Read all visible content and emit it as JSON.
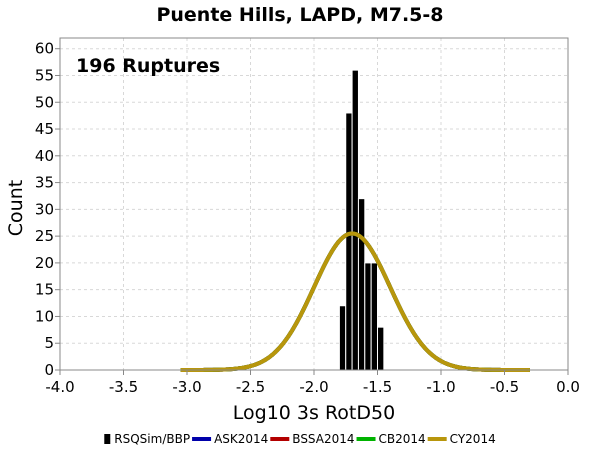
{
  "chart_data": {
    "type": "bar",
    "title": "Puente Hills, LAPD, M7.5-8",
    "xlabel": "Log10 3s RotD50",
    "ylabel": "Count",
    "xlim": [
      -4.0,
      0.0
    ],
    "ylim": [
      0,
      62
    ],
    "x_ticks": [
      "-4.0",
      "-3.5",
      "-3.0",
      "-2.5",
      "-2.0",
      "-1.5",
      "-1.0",
      "-0.5",
      "0.0"
    ],
    "x_tick_values": [
      -4.0,
      -3.5,
      -3.0,
      -2.5,
      -2.0,
      -1.5,
      -1.0,
      -0.5,
      0.0
    ],
    "y_ticks": [
      "0",
      "5",
      "10",
      "15",
      "20",
      "25",
      "30",
      "35",
      "40",
      "45",
      "50",
      "55",
      "60"
    ],
    "y_tick_values": [
      0,
      5,
      10,
      15,
      20,
      25,
      30,
      35,
      40,
      45,
      50,
      55,
      60
    ],
    "grid": true,
    "annotation": "196 Ruptures",
    "histogram": {
      "name": "RSQSim/BBP",
      "color": "#000000",
      "bin_width": 0.05,
      "bins": [
        {
          "x": -1.775,
          "count": 12
        },
        {
          "x": -1.725,
          "count": 48
        },
        {
          "x": -1.675,
          "count": 56
        },
        {
          "x": -1.625,
          "count": 32
        },
        {
          "x": -1.575,
          "count": 20
        },
        {
          "x": -1.525,
          "count": 20
        },
        {
          "x": -1.475,
          "count": 8
        }
      ]
    },
    "series": [
      {
        "name": "ASK2014",
        "color": "#0000aa",
        "mean": -1.7,
        "sigma": 0.3,
        "peak": 25.5
      },
      {
        "name": "BSSA2014",
        "color": "#b30000",
        "mean": -1.7,
        "sigma": 0.3,
        "peak": 25.5
      },
      {
        "name": "CB2014",
        "color": "#00b300",
        "mean": -1.7,
        "sigma": 0.3,
        "peak": 25.5
      },
      {
        "name": "CY2014",
        "color": "#b8960c",
        "mean": -1.7,
        "sigma": 0.3,
        "peak": 25.5
      }
    ],
    "curve_range": [
      -3.05,
      -0.3
    ],
    "legend": [
      "RSQSim/BBP",
      "ASK2014",
      "BSSA2014",
      "CB2014",
      "CY2014"
    ],
    "legend_position": "bottom"
  }
}
